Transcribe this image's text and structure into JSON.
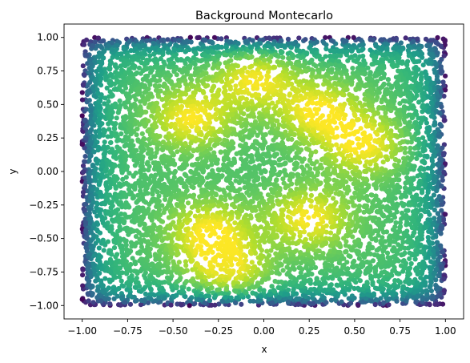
{
  "chart_data": {
    "type": "scatter",
    "title": "Background Montecarlo",
    "xlabel": "x",
    "ylabel": "y",
    "xlim": [
      -1.1,
      1.1
    ],
    "ylim": [
      -1.1,
      1.1
    ],
    "xticks": [
      -1.0,
      -0.75,
      -0.5,
      -0.25,
      0.0,
      0.25,
      0.5,
      0.75,
      1.0
    ],
    "yticks": [
      -1.0,
      -0.75,
      -0.5,
      -0.25,
      0.0,
      0.25,
      0.5,
      0.75,
      1.0
    ],
    "xtick_labels": [
      "−1.00",
      "−0.75",
      "−0.50",
      "−0.25",
      "0.00",
      "0.25",
      "0.50",
      "0.75",
      "1.00"
    ],
    "ytick_labels": [
      "−1.00",
      "−0.75",
      "−0.50",
      "−0.25",
      "0.00",
      "0.25",
      "0.50",
      "0.75",
      "1.00"
    ],
    "grid": false,
    "colormap": "viridis",
    "color_encoding": "point density",
    "sample_region": {
      "x": [
        -1.0,
        1.0
      ],
      "y": [
        -1.0,
        1.0
      ]
    },
    "density_hotspots": [
      {
        "x": -0.4,
        "y": 0.4
      },
      {
        "x": 0.3,
        "y": 0.45
      },
      {
        "x": -0.05,
        "y": 0.7
      },
      {
        "x": 0.25,
        "y": -0.35
      },
      {
        "x": -0.3,
        "y": -0.45
      },
      {
        "x": -0.2,
        "y": -0.75
      },
      {
        "x": 0.55,
        "y": 0.2
      }
    ],
    "n_points": 9000
  }
}
